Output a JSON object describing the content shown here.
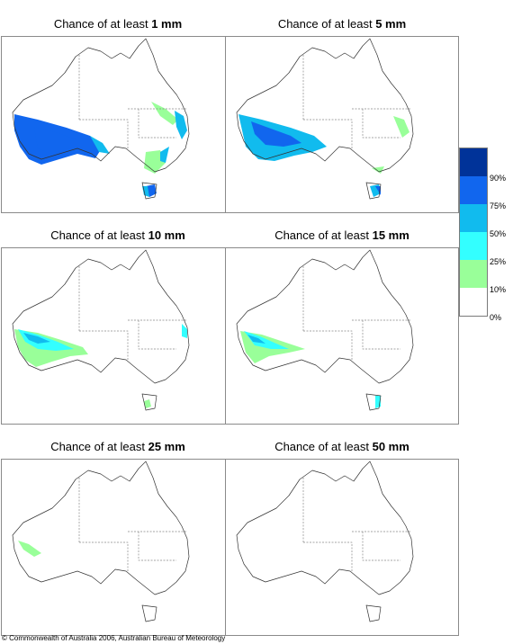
{
  "panels": [
    {
      "title_prefix": "Chance of at least ",
      "amount": "1 mm"
    },
    {
      "title_prefix": "Chance of at least ",
      "amount": "5 mm"
    },
    {
      "title_prefix": "Chance of at least ",
      "amount": "10 mm"
    },
    {
      "title_prefix": "Chance of at least ",
      "amount": "15 mm"
    },
    {
      "title_prefix": "Chance of at least ",
      "amount": "25 mm"
    },
    {
      "title_prefix": "Chance of at least ",
      "amount": "50 mm"
    }
  ],
  "legend": {
    "labels": [
      "90%",
      "75%",
      "50%",
      "25%",
      "10%",
      "0%"
    ],
    "colors": [
      "#003399",
      "#1166ee",
      "#11bbee",
      "#33ffff",
      "#99ff99",
      "#ffffff"
    ]
  },
  "copyright": "© Commonwealth of Australia 2006, Australian Bureau of Meteorology"
}
